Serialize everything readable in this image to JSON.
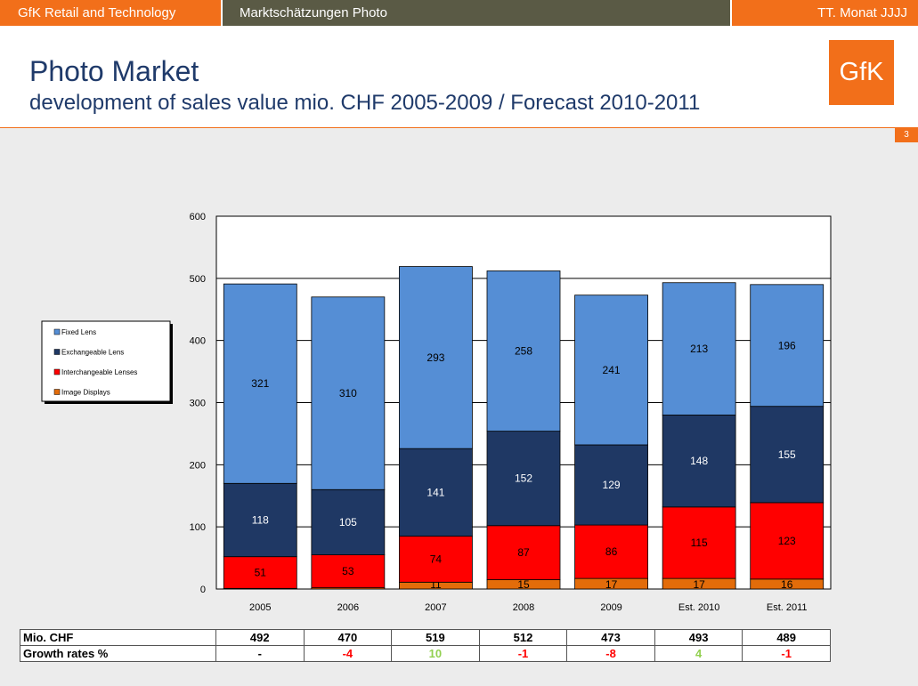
{
  "topbar": {
    "left": "GfK Retail and Technology",
    "middle": "Marktschätzungen Photo",
    "right": "TT. Monat JJJJ"
  },
  "header": {
    "title": "Photo Market",
    "subtitle": "development of sales value mio. CHF 2005-2009 / Forecast 2010-2011",
    "logo": "GfK",
    "page_number": "3"
  },
  "colors": {
    "brand_orange": "#f26f1a",
    "fixed_lens": "#558ed5",
    "exchangeable_lens": "#1f3864",
    "interchangeable_lenses": "#ff0000",
    "image_displays": "#e36c0a",
    "growth_positive": "#92d050",
    "growth_negative": "#ff0000"
  },
  "chart_data": {
    "type": "bar",
    "stacked": true,
    "categories": [
      "2005",
      "2006",
      "2007",
      "2008",
      "2009",
      "Est. 2010",
      "Est. 2011"
    ],
    "series": [
      {
        "name": "Image Displays",
        "values": [
          1,
          2,
          11,
          15,
          17,
          17,
          16
        ],
        "color": "#e36c0a"
      },
      {
        "name": "Interchangeable Lenses",
        "values": [
          51,
          53,
          74,
          87,
          86,
          115,
          123
        ],
        "color": "#ff0000"
      },
      {
        "name": "Exchangeable Lens",
        "values": [
          118,
          105,
          141,
          152,
          129,
          148,
          155
        ],
        "color": "#1f3864"
      },
      {
        "name": "Fixed Lens",
        "values": [
          321,
          310,
          293,
          258,
          241,
          213,
          196
        ],
        "color": "#558ed5"
      }
    ],
    "legend_order": [
      "Fixed Lens",
      "Exchangeable Lens",
      "Interchangeable Lenses",
      "Image Displays"
    ],
    "ylim": [
      0,
      600
    ],
    "yticks": [
      0,
      100,
      200,
      300,
      400,
      500,
      600
    ],
    "grid": true,
    "legend_position": "left"
  },
  "table": {
    "rows": [
      {
        "label": "Mio. CHF",
        "values": [
          "492",
          "470",
          "519",
          "512",
          "473",
          "493",
          "489"
        ]
      },
      {
        "label": "Growth rates %",
        "values": [
          "-",
          "-4",
          "10",
          "-1",
          "-8",
          "4",
          "-1"
        ]
      }
    ]
  }
}
